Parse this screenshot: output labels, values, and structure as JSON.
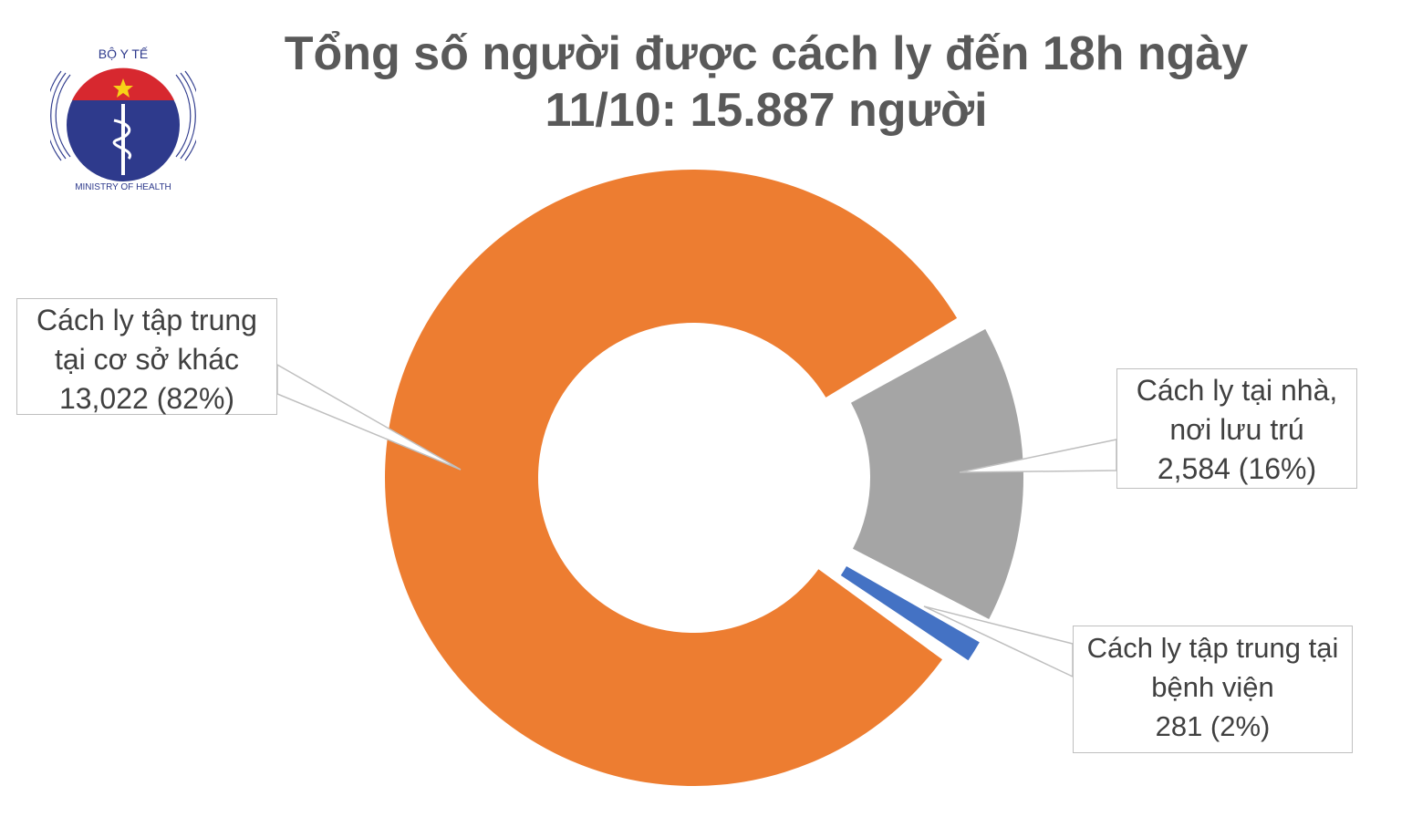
{
  "title": {
    "line1": "Tổng số người được cách ly đến 18h ngày",
    "line2": "11/10: 15.887 người"
  },
  "logo": {
    "text_top": "BỘ Y TẾ",
    "text_bottom": "MINISTRY OF HEALTH",
    "colors": {
      "red": "#d7282f",
      "blue": "#2e3a8c",
      "star": "#f7d117"
    }
  },
  "chart_data": {
    "type": "pie",
    "style": "donut",
    "title": "Tổng số người được cách ly đến 18h ngày 11/10: 15.887 người",
    "total": 15887,
    "slices": [
      {
        "name": "Cách ly tại nhà, nơi lưu trú",
        "value": 2584,
        "percent": 16,
        "color": "#a5a5a5",
        "exploded": true,
        "label_lines": [
          "Cách ly tại nhà,",
          "nơi lưu trú",
          "2,584 (16%)"
        ]
      },
      {
        "name": "Cách ly tập trung tại bệnh viện",
        "value": 281,
        "percent": 2,
        "color": "#4472c4",
        "exploded": true,
        "label_lines": [
          "Cách ly tập trung tại",
          "bệnh viện",
          "281 (2%)"
        ]
      },
      {
        "name": "Cách ly tập trung tại cơ sở khác",
        "value": 13022,
        "percent": 82,
        "color": "#ed7d31",
        "exploded": false,
        "label_lines": [
          "Cách ly tập trung",
          "tại cơ sở khác",
          "13,022 (82%)"
        ]
      }
    ]
  }
}
